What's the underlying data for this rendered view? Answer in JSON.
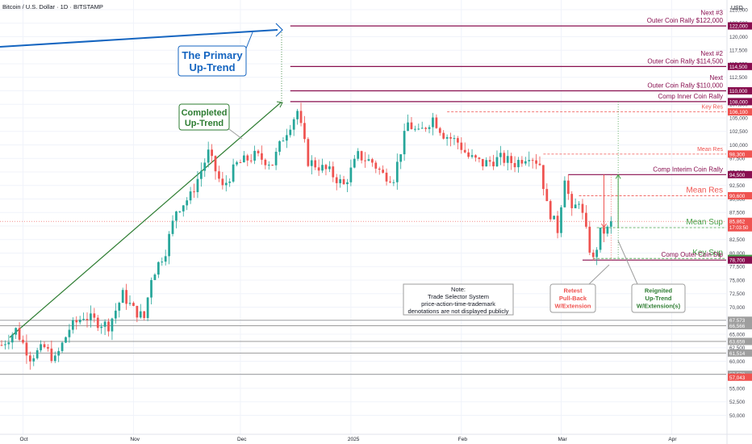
{
  "header": {
    "symbol_title": "Bitcoin / U.S. Dollar · 1D · BITSTAMP",
    "currency": "USD"
  },
  "colors": {
    "up": "#26a69a",
    "down": "#ef5350",
    "resistance": "#880e4f",
    "support_green": "#43a047",
    "trend_blue": "#1565c0",
    "trend_green": "#2e7d32",
    "grey_level": "#8d8d8d"
  },
  "chart_data": {
    "type": "candlestick",
    "title": "Bitcoin / U.S. Dollar · 1D · BITSTAMP",
    "y_axis": {
      "unit": "USD",
      "range": [
        48000,
        126500
      ],
      "ticks": [
        50000,
        52500,
        55000,
        57500,
        60000,
        62500,
        65000,
        67500,
        70000,
        72500,
        75000,
        77500,
        80000,
        82500,
        85000,
        87500,
        90000,
        92500,
        95000,
        97500,
        100000,
        102500,
        105000,
        107500,
        110000,
        112500,
        115000,
        117500,
        120000,
        122500,
        125000
      ],
      "tick_labels": [
        "50,000",
        "52,500",
        "55,000",
        "57,500",
        "60,000",
        "62,500",
        "65,000",
        "67,500",
        "70,000",
        "72,500",
        "75,000",
        "77,500",
        "80,000",
        "82,500",
        "85,000",
        "87,500",
        "90,000",
        "92,500",
        "95,000",
        "97,500",
        "100,000",
        "102,500",
        "105,000",
        "107,500",
        "110,000",
        "112,500",
        "115,000",
        "117,500",
        "120,000",
        "122,500",
        "125,000"
      ]
    },
    "x_axis": {
      "start_date": "2024-09-25",
      "end_date": "2025-04-24",
      "tick_dates": [
        "2024-10-01",
        "2024-11-01",
        "2024-12-01",
        "2025-01-01",
        "2025-02-01",
        "2025-03-01",
        "2025-04-01"
      ],
      "tick_labels": [
        "Oct",
        "Nov",
        "Dec",
        "2025",
        "Feb",
        "Mar",
        "Apr"
      ]
    },
    "candles_close_path": [
      [
        "2024-09-25",
        63000
      ],
      [
        "2024-09-29",
        65800
      ],
      [
        "2024-10-03",
        60800
      ],
      [
        "2024-10-07",
        62500
      ],
      [
        "2024-10-10",
        60200
      ],
      [
        "2024-10-14",
        66000
      ],
      [
        "2024-10-18",
        68400
      ],
      [
        "2024-10-22",
        67200
      ],
      [
        "2024-10-25",
        66600
      ],
      [
        "2024-10-29",
        72300
      ],
      [
        "2024-11-01",
        69500
      ],
      [
        "2024-11-04",
        68000
      ],
      [
        "2024-11-06",
        75600
      ],
      [
        "2024-11-10",
        80500
      ],
      [
        "2024-11-13",
        88000
      ],
      [
        "2024-11-17",
        90500
      ],
      [
        "2024-11-22",
        98500
      ],
      [
        "2024-11-26",
        92000
      ],
      [
        "2024-11-30",
        96400
      ],
      [
        "2024-12-05",
        98000
      ],
      [
        "2024-12-10",
        96600
      ],
      [
        "2024-12-13",
        101400
      ],
      [
        "2024-12-17",
        106300
      ],
      [
        "2024-12-20",
        97000
      ],
      [
        "2024-12-26",
        95000
      ],
      [
        "2024-12-30",
        92500
      ],
      [
        "2025-01-03",
        98000
      ],
      [
        "2025-01-07",
        96800
      ],
      [
        "2025-01-10",
        94500
      ],
      [
        "2025-01-13",
        94000
      ],
      [
        "2025-01-17",
        104000
      ],
      [
        "2025-01-20",
        102000
      ],
      [
        "2025-01-24",
        105000
      ],
      [
        "2025-01-27",
        102000
      ],
      [
        "2025-01-31",
        100500
      ],
      [
        "2025-02-03",
        97800
      ],
      [
        "2025-02-07",
        96500
      ],
      [
        "2025-02-12",
        97500
      ],
      [
        "2025-02-16",
        96600
      ],
      [
        "2025-02-20",
        98300
      ],
      [
        "2025-02-23",
        96500
      ],
      [
        "2025-02-25",
        88800
      ],
      [
        "2025-02-28",
        84300
      ],
      [
        "2025-03-02",
        94300
      ],
      [
        "2025-03-04",
        87300
      ],
      [
        "2025-03-06",
        89900
      ],
      [
        "2025-03-09",
        80800
      ],
      [
        "2025-03-10",
        78600
      ],
      [
        "2025-03-12",
        83700
      ],
      [
        "2025-03-14",
        84300
      ],
      [
        "2025-03-15",
        85862
      ]
    ],
    "levels": [
      {
        "price": 122000,
        "label": "122,000",
        "line_text": [
          "Next #3",
          "Outer Coin Rally $122,000"
        ],
        "style": "solid",
        "color": "#880e4f"
      },
      {
        "price": 114500,
        "label": "114,500",
        "line_text": [
          "Next #2",
          "Outer Coin Rally $114,500"
        ],
        "style": "solid",
        "color": "#880e4f"
      },
      {
        "price": 110000,
        "label": "110,000",
        "line_text": [
          "Next",
          "Outer Coin Rally $110,000"
        ],
        "style": "solid",
        "color": "#880e4f"
      },
      {
        "price": 108000,
        "label": "108,000",
        "line_text": [
          "Comp Inner Coin Rally"
        ],
        "style": "solid",
        "color": "#880e4f"
      },
      {
        "price": 106100,
        "label": "106,100",
        "line_text": [
          "Key Res"
        ],
        "style": "dashed",
        "color": "#ef5350"
      },
      {
        "price": 98300,
        "label": "98,300",
        "line_text": [
          "Mean Res"
        ],
        "style": "dashed",
        "color": "#ef5350"
      },
      {
        "price": 94500,
        "label": "94,500",
        "line_text": [
          "Comp Interim Coin Rally"
        ],
        "style": "solid",
        "color": "#880e4f"
      },
      {
        "price": 90600,
        "label": "90,600",
        "line_text": [
          "Mean Res"
        ],
        "style": "dashed",
        "color": "#ef5350"
      },
      {
        "price": 84700,
        "label": "84,700",
        "line_text": [
          "Mean Sup"
        ],
        "style": "dashed",
        "color": "#43a047"
      },
      {
        "price": 79000,
        "label": "79,000",
        "line_text": [
          "Key Sup"
        ],
        "style": "dashed",
        "color": "#43a047"
      },
      {
        "price": 78700,
        "label": "78,700",
        "line_text": [
          "Comp Outer Coin Dip"
        ],
        "style": "solid",
        "color": "#880e4f"
      }
    ],
    "grey_levels": [
      {
        "price": 67573,
        "label": "67,573"
      },
      {
        "price": 66566,
        "label": "66,566"
      },
      {
        "price": 63659,
        "label": "63,659"
      },
      {
        "price": 61514,
        "label": "61,514"
      },
      {
        "price": 57578,
        "label": "57,578"
      }
    ],
    "price_badges": [
      {
        "price": 57043,
        "label": "57,043",
        "color": "#ef5350"
      },
      {
        "price": 85862,
        "label": "85,862",
        "color": "#ef5350",
        "sub_label": "17:03:50"
      }
    ],
    "annotations": {
      "primary_uptrend": [
        "The Primary",
        "Up-Trend"
      ],
      "completed_uptrend": [
        "Completed",
        "Up-Trend"
      ],
      "note": [
        "Note:",
        "Trade Selector System",
        "price-action-time-trademark",
        "denotations are not displayed publicly"
      ],
      "retest": [
        "Retest",
        "Pull-Back",
        "W/Extension"
      ],
      "reignited": [
        "Reignited",
        "Up-Trend",
        "W/Extension(s)"
      ]
    },
    "grid": true,
    "legend": "none"
  }
}
